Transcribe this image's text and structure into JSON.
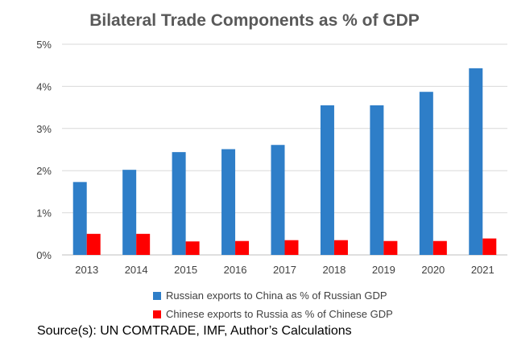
{
  "chart_data": {
    "type": "bar",
    "title": "Bilateral Trade Components as % of GDP",
    "categories": [
      "2013",
      "2014",
      "2015",
      "2016",
      "2017",
      "2018",
      "2019",
      "2020",
      "2021"
    ],
    "series": [
      {
        "name": "Russian exports to China as % of Russian GDP",
        "color": "#2E7EC8",
        "values": [
          1.73,
          2.02,
          2.44,
          2.51,
          2.61,
          3.55,
          3.55,
          3.87,
          4.43
        ]
      },
      {
        "name": "Chinese exports to Russia as % of Chinese GDP",
        "color": "#FF0000",
        "values": [
          0.5,
          0.5,
          0.32,
          0.33,
          0.35,
          0.35,
          0.33,
          0.33,
          0.39
        ]
      }
    ],
    "ylim": [
      0,
      5
    ],
    "yticks": [
      "0%",
      "1%",
      "2%",
      "3%",
      "4%",
      "5%"
    ],
    "grid": true,
    "legend_position": "bottom"
  },
  "source": "Source(s): UN COMTRADE, IMF, Author’s Calculations"
}
